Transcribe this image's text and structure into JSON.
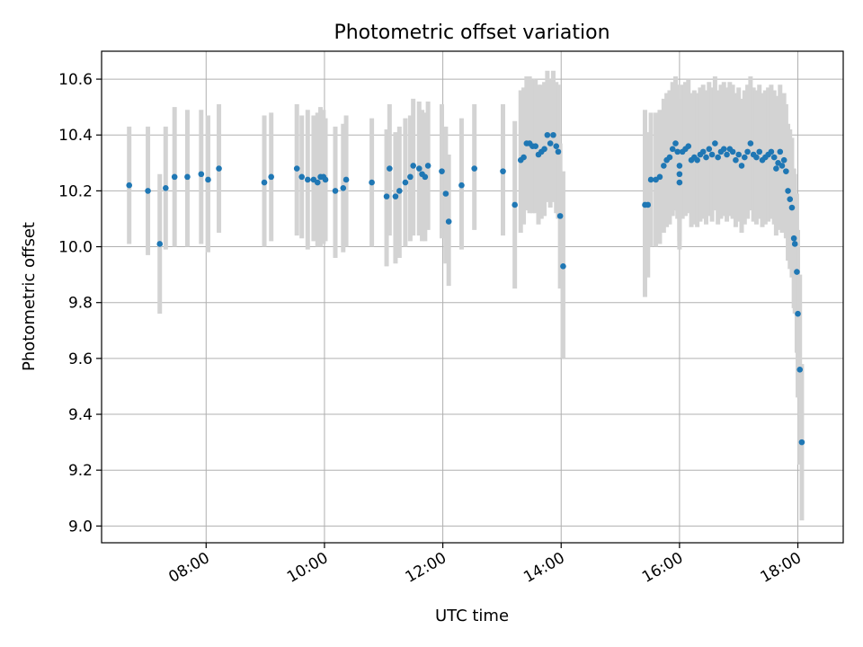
{
  "chart_data": {
    "type": "scatter",
    "title": "Photometric offset variation",
    "xlabel": "UTC time",
    "ylabel": "Photometric offset",
    "x_tick_labels": [
      "08:00",
      "10:00",
      "12:00",
      "14:00",
      "16:00",
      "18:00"
    ],
    "y_tick_labels": [
      "9.0",
      "9.2",
      "9.4",
      "9.6",
      "9.8",
      "10.0",
      "10.2",
      "10.4",
      "10.6"
    ],
    "xlim": [
      "06:14",
      "18:46"
    ],
    "ylim": [
      8.94,
      10.7
    ],
    "grid": true,
    "colors": {
      "points": "#1f77b4",
      "error_bars": "#d3d3d3"
    },
    "series": [
      {
        "points": [
          [
            "06:42",
            10.22,
            10.01,
            10.43
          ],
          [
            "07:01",
            10.2,
            9.97,
            10.43
          ],
          [
            "07:13",
            10.01,
            9.76,
            10.26
          ],
          [
            "07:19",
            10.21,
            9.99,
            10.43
          ],
          [
            "07:28",
            10.25,
            10.0,
            10.5
          ],
          [
            "07:41",
            10.25,
            10.0,
            10.49
          ],
          [
            "07:55",
            10.26,
            10.01,
            10.49
          ],
          [
            "08:02",
            10.24,
            9.98,
            10.47
          ],
          [
            "08:13",
            10.28,
            10.05,
            10.51
          ],
          [
            "08:59",
            10.23,
            10.0,
            10.47
          ],
          [
            "09:06",
            10.25,
            10.02,
            10.48
          ],
          [
            "09:32",
            10.28,
            10.04,
            10.51
          ],
          [
            "09:37",
            10.25,
            10.03,
            10.47
          ],
          [
            "09:43",
            10.24,
            9.99,
            10.49
          ],
          [
            "09:49",
            10.24,
            10.02,
            10.47
          ],
          [
            "09:53",
            10.23,
            10.0,
            10.48
          ],
          [
            "09:56",
            10.25,
            10.0,
            10.5
          ],
          [
            "09:59",
            10.25,
            10.01,
            10.49
          ],
          [
            "10:01",
            10.24,
            10.02,
            10.46
          ],
          [
            "10:11",
            10.2,
            9.96,
            10.43
          ],
          [
            "10:19",
            10.21,
            9.98,
            10.44
          ],
          [
            "10:22",
            10.24,
            10.0,
            10.47
          ],
          [
            "10:48",
            10.23,
            10.0,
            10.46
          ],
          [
            "11:03",
            10.18,
            9.93,
            10.42
          ],
          [
            "11:06",
            10.28,
            10.04,
            10.51
          ],
          [
            "11:12",
            10.18,
            9.94,
            10.41
          ],
          [
            "11:16",
            10.2,
            9.96,
            10.43
          ],
          [
            "11:22",
            10.23,
            10.0,
            10.46
          ],
          [
            "11:27",
            10.25,
            10.02,
            10.47
          ],
          [
            "11:30",
            10.29,
            10.04,
            10.53
          ],
          [
            "11:36",
            10.28,
            10.04,
            10.52
          ],
          [
            "11:39",
            10.26,
            10.02,
            10.49
          ],
          [
            "11:42",
            10.25,
            10.02,
            10.48
          ],
          [
            "11:45",
            10.29,
            10.06,
            10.52
          ],
          [
            "11:59",
            10.27,
            10.03,
            10.51
          ],
          [
            "12:03",
            10.19,
            9.94,
            10.43
          ],
          [
            "12:06",
            10.09,
            9.86,
            10.33
          ],
          [
            "12:19",
            10.22,
            9.99,
            10.46
          ],
          [
            "12:32",
            10.28,
            10.06,
            10.51
          ],
          [
            "13:01",
            10.27,
            10.04,
            10.51
          ],
          [
            "13:13",
            10.15,
            9.85,
            10.45
          ],
          [
            "13:19",
            10.31,
            10.05,
            10.56
          ],
          [
            "13:22",
            10.32,
            10.08,
            10.57
          ],
          [
            "13:25",
            10.37,
            10.13,
            10.61
          ],
          [
            "13:28",
            10.37,
            10.12,
            10.61
          ],
          [
            "13:31",
            10.36,
            10.12,
            10.6
          ],
          [
            "13:34",
            10.36,
            10.12,
            10.6
          ],
          [
            "13:37",
            10.33,
            10.08,
            10.58
          ],
          [
            "13:40",
            10.34,
            10.1,
            10.58
          ],
          [
            "13:43",
            10.35,
            10.11,
            10.59
          ],
          [
            "13:46",
            10.4,
            10.16,
            10.63
          ],
          [
            "13:49",
            10.37,
            10.14,
            10.6
          ],
          [
            "13:52",
            10.4,
            10.16,
            10.63
          ],
          [
            "13:55",
            10.36,
            10.12,
            10.59
          ],
          [
            "13:57",
            10.34,
            10.1,
            10.58
          ],
          [
            "13:59",
            10.11,
            9.85,
            10.37
          ],
          [
            "14:02",
            9.93,
            9.6,
            10.27
          ],
          [
            "15:25",
            10.15,
            9.82,
            10.49
          ],
          [
            "15:28",
            10.15,
            9.89,
            10.41
          ],
          [
            "15:31",
            10.24,
            10.0,
            10.48
          ],
          [
            "15:36",
            10.24,
            10.0,
            10.48
          ],
          [
            "15:40",
            10.25,
            10.01,
            10.49
          ],
          [
            "15:44",
            10.29,
            10.05,
            10.53
          ],
          [
            "15:47",
            10.31,
            10.07,
            10.55
          ],
          [
            "15:50",
            10.32,
            10.08,
            10.56
          ],
          [
            "15:53",
            10.35,
            10.11,
            10.59
          ],
          [
            "15:56",
            10.37,
            10.13,
            10.61
          ],
          [
            "15:58",
            10.34,
            10.1,
            10.58
          ],
          [
            "16:00",
            10.29,
            10.05,
            10.53
          ],
          [
            "16:00",
            10.23,
            9.99,
            10.47
          ],
          [
            "16:00",
            10.26,
            10.02,
            10.5
          ],
          [
            "16:03",
            10.34,
            10.1,
            10.58
          ],
          [
            "16:06",
            10.35,
            10.11,
            10.59
          ],
          [
            "16:09",
            10.36,
            10.12,
            10.6
          ],
          [
            "16:12",
            10.31,
            10.07,
            10.55
          ],
          [
            "16:15",
            10.32,
            10.08,
            10.56
          ],
          [
            "16:18",
            10.31,
            10.07,
            10.55
          ],
          [
            "16:21",
            10.33,
            10.09,
            10.57
          ],
          [
            "16:24",
            10.34,
            10.1,
            10.58
          ],
          [
            "16:27",
            10.32,
            10.08,
            10.56
          ],
          [
            "16:30",
            10.35,
            10.11,
            10.59
          ],
          [
            "16:33",
            10.33,
            10.09,
            10.57
          ],
          [
            "16:36",
            10.37,
            10.13,
            10.61
          ],
          [
            "16:39",
            10.32,
            10.08,
            10.56
          ],
          [
            "16:42",
            10.34,
            10.1,
            10.58
          ],
          [
            "16:45",
            10.35,
            10.11,
            10.59
          ],
          [
            "16:48",
            10.33,
            10.09,
            10.57
          ],
          [
            "16:51",
            10.35,
            10.11,
            10.59
          ],
          [
            "16:54",
            10.34,
            10.1,
            10.58
          ],
          [
            "16:57",
            10.31,
            10.07,
            10.55
          ],
          [
            "17:00",
            10.33,
            10.09,
            10.57
          ],
          [
            "17:03",
            10.29,
            10.05,
            10.53
          ],
          [
            "17:06",
            10.32,
            10.08,
            10.56
          ],
          [
            "17:09",
            10.34,
            10.1,
            10.58
          ],
          [
            "17:12",
            10.37,
            10.13,
            10.61
          ],
          [
            "17:15",
            10.33,
            10.09,
            10.57
          ],
          [
            "17:18",
            10.32,
            10.08,
            10.56
          ],
          [
            "17:21",
            10.34,
            10.1,
            10.58
          ],
          [
            "17:24",
            10.31,
            10.07,
            10.55
          ],
          [
            "17:27",
            10.32,
            10.08,
            10.56
          ],
          [
            "17:30",
            10.33,
            10.09,
            10.57
          ],
          [
            "17:33",
            10.34,
            10.1,
            10.58
          ],
          [
            "17:36",
            10.32,
            10.08,
            10.56
          ],
          [
            "17:38",
            10.28,
            10.04,
            10.52
          ],
          [
            "17:40",
            10.3,
            10.06,
            10.54
          ],
          [
            "17:42",
            10.34,
            10.1,
            10.58
          ],
          [
            "17:44",
            10.29,
            10.05,
            10.53
          ],
          [
            "17:46",
            10.31,
            10.07,
            10.55
          ],
          [
            "17:48",
            10.27,
            10.03,
            10.51
          ],
          [
            "17:50",
            10.2,
            9.95,
            10.44
          ],
          [
            "17:52",
            10.17,
            9.92,
            10.42
          ],
          [
            "17:54",
            10.14,
            9.89,
            10.39
          ],
          [
            "17:56",
            10.03,
            9.78,
            10.28
          ],
          [
            "17:57",
            10.01,
            9.76,
            10.26
          ],
          [
            "17:59",
            9.91,
            9.62,
            10.19
          ],
          [
            "18:00",
            9.76,
            9.46,
            10.06
          ],
          [
            "18:02",
            9.56,
            9.22,
            9.9
          ],
          [
            "18:04",
            9.3,
            9.02,
            9.58
          ]
        ]
      }
    ]
  }
}
